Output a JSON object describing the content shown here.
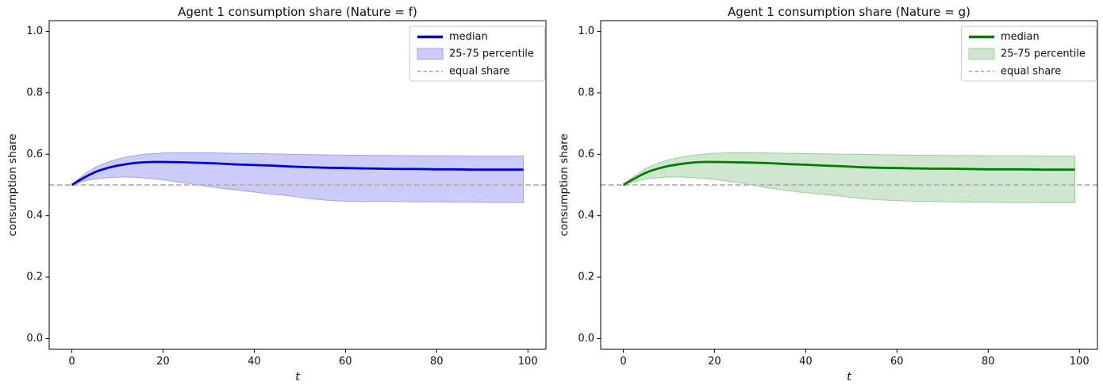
{
  "figure": {
    "background": "#ffffff",
    "text_color": "#111111",
    "spine_color": "#000000"
  },
  "chart_data": [
    {
      "type": "line",
      "title": "Agent 1 consumption share (Nature = f)",
      "xlabel": "t",
      "ylabel": "consumption share",
      "legend": [
        "median",
        "25-75 percentile",
        "equal share"
      ],
      "legend_position": "upper right",
      "grid": false,
      "xlim": [
        -4.95,
        103.95
      ],
      "ylim": [
        -0.035,
        1.035
      ],
      "xticks": [
        0,
        20,
        40,
        60,
        80,
        100
      ],
      "yticks": [
        0.0,
        0.2,
        0.4,
        0.6,
        0.8,
        1.0
      ],
      "xtick_labels": [
        "0",
        "20",
        "40",
        "60",
        "80",
        "100"
      ],
      "ytick_labels": [
        "0.0",
        "0.2",
        "0.4",
        "0.6",
        "0.8",
        "1.0"
      ],
      "line_color": "#0000dd",
      "band_fill": "#ccccfa",
      "band_edge": "#a2a2ec",
      "dashed_color": "#b0b0b0",
      "equal_share": 0.5,
      "x": [
        0,
        1,
        2,
        3,
        4,
        5,
        6,
        8,
        10,
        12,
        14,
        16,
        18,
        20,
        24,
        28,
        32,
        36,
        40,
        44,
        48,
        52,
        56,
        60,
        64,
        68,
        72,
        76,
        80,
        84,
        88,
        92,
        96,
        99
      ],
      "series": [
        {
          "name": "median",
          "values": [
            0.5,
            0.509,
            0.518,
            0.526,
            0.534,
            0.541,
            0.547,
            0.556,
            0.563,
            0.568,
            0.572,
            0.574,
            0.575,
            0.575,
            0.574,
            0.572,
            0.57,
            0.567,
            0.565,
            0.563,
            0.56,
            0.558,
            0.556,
            0.555,
            0.554,
            0.553,
            0.552,
            0.552,
            0.551,
            0.551,
            0.55,
            0.55,
            0.55,
            0.55
          ]
        },
        {
          "name": "p75",
          "values": [
            0.5,
            0.513,
            0.526,
            0.537,
            0.547,
            0.556,
            0.563,
            0.575,
            0.584,
            0.591,
            0.596,
            0.6,
            0.602,
            0.604,
            0.605,
            0.605,
            0.604,
            0.603,
            0.602,
            0.601,
            0.6,
            0.599,
            0.598,
            0.597,
            0.597,
            0.596,
            0.596,
            0.595,
            0.595,
            0.595,
            0.594,
            0.594,
            0.594,
            0.594
          ]
        },
        {
          "name": "p25",
          "values": [
            0.5,
            0.505,
            0.51,
            0.514,
            0.517,
            0.519,
            0.521,
            0.524,
            0.525,
            0.526,
            0.525,
            0.523,
            0.52,
            0.517,
            0.508,
            0.499,
            0.491,
            0.484,
            0.477,
            0.47,
            0.464,
            0.456,
            0.45,
            0.447,
            0.446,
            0.447,
            0.446,
            0.445,
            0.445,
            0.444,
            0.444,
            0.443,
            0.443,
            0.443
          ]
        }
      ]
    },
    {
      "type": "line",
      "title": "Agent 1 consumption share (Nature = g)",
      "xlabel": "t",
      "ylabel": "consumption share",
      "legend": [
        "median",
        "25-75 percentile",
        "equal share"
      ],
      "legend_position": "upper right",
      "grid": false,
      "xlim": [
        -4.95,
        103.95
      ],
      "ylim": [
        -0.035,
        1.035
      ],
      "xticks": [
        0,
        20,
        40,
        60,
        80,
        100
      ],
      "yticks": [
        0.0,
        0.2,
        0.4,
        0.6,
        0.8,
        1.0
      ],
      "xtick_labels": [
        "0",
        "20",
        "40",
        "60",
        "80",
        "100"
      ],
      "ytick_labels": [
        "0.0",
        "0.2",
        "0.4",
        "0.6",
        "0.8",
        "1.0"
      ],
      "line_color": "#007d00",
      "band_fill": "#cfe6cf",
      "band_edge": "#9fcc9f",
      "dashed_color": "#b0b0b0",
      "equal_share": 0.5,
      "x": [
        0,
        1,
        2,
        3,
        4,
        5,
        6,
        8,
        10,
        12,
        14,
        16,
        18,
        20,
        24,
        28,
        32,
        36,
        40,
        44,
        48,
        52,
        56,
        60,
        64,
        68,
        72,
        76,
        80,
        84,
        88,
        92,
        96,
        99
      ],
      "series": [
        {
          "name": "median",
          "values": [
            0.5,
            0.509,
            0.517,
            0.525,
            0.533,
            0.54,
            0.546,
            0.555,
            0.562,
            0.567,
            0.571,
            0.574,
            0.575,
            0.575,
            0.574,
            0.573,
            0.571,
            0.568,
            0.566,
            0.563,
            0.561,
            0.558,
            0.556,
            0.555,
            0.554,
            0.553,
            0.553,
            0.552,
            0.551,
            0.551,
            0.551,
            0.55,
            0.55,
            0.55
          ]
        },
        {
          "name": "p75",
          "values": [
            0.5,
            0.512,
            0.524,
            0.535,
            0.545,
            0.554,
            0.561,
            0.573,
            0.582,
            0.589,
            0.594,
            0.598,
            0.601,
            0.603,
            0.605,
            0.605,
            0.604,
            0.603,
            0.602,
            0.601,
            0.6,
            0.6,
            0.599,
            0.598,
            0.597,
            0.597,
            0.596,
            0.596,
            0.595,
            0.595,
            0.595,
            0.594,
            0.594,
            0.594
          ]
        },
        {
          "name": "p25",
          "values": [
            0.5,
            0.505,
            0.509,
            0.513,
            0.516,
            0.519,
            0.521,
            0.524,
            0.526,
            0.526,
            0.525,
            0.523,
            0.521,
            0.518,
            0.51,
            0.501,
            0.49,
            0.482,
            0.475,
            0.469,
            0.463,
            0.456,
            0.452,
            0.449,
            0.447,
            0.446,
            0.445,
            0.444,
            0.444,
            0.443,
            0.443,
            0.442,
            0.442,
            0.442
          ]
        }
      ]
    }
  ]
}
